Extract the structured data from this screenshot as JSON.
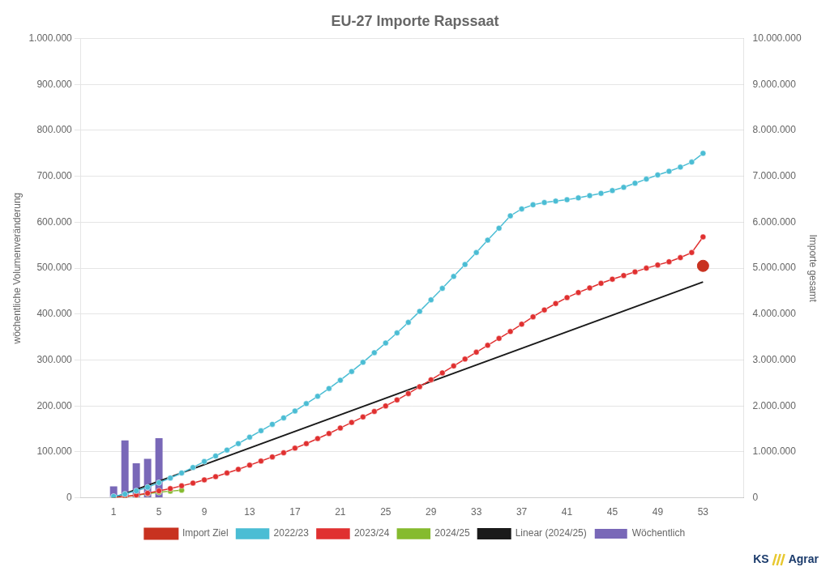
{
  "chart_data": {
    "type": "bar",
    "title": "EU-27 Importe Rapssaat",
    "ylabel": "wöchentliche Volumenveränderung",
    "y2label": "Importe gesamt",
    "xlim": [
      0.2,
      54.5
    ],
    "xticks": [
      1,
      5,
      9,
      13,
      17,
      21,
      25,
      29,
      33,
      37,
      41,
      45,
      49,
      53
    ],
    "ylim": [
      0,
      1000000
    ],
    "yticks": [
      0,
      {
        "value": 100000,
        "label": "100.000"
      },
      {
        "value": 200000,
        "label": "200.000"
      },
      {
        "value": 300000,
        "label": "300.000"
      },
      {
        "value": 400000,
        "label": "400.000"
      },
      {
        "value": 500000,
        "label": "500.000"
      },
      {
        "value": 600000,
        "label": "600.000"
      },
      {
        "value": 700000,
        "label": "700.000"
      },
      {
        "value": 800000,
        "label": "800.000"
      },
      {
        "value": 900000,
        "label": "900.000"
      },
      {
        "value": 1000000,
        "label": "1.000.000"
      }
    ],
    "y2lim": [
      0,
      10000000
    ],
    "y2ticks": [
      0,
      {
        "value": 1000000,
        "label": "1.000.000"
      },
      {
        "value": 2000000,
        "label": "2.000.000"
      },
      {
        "value": 3000000,
        "label": "3.000.000"
      },
      {
        "value": 4000000,
        "label": "4.000.000"
      },
      {
        "value": 5000000,
        "label": "5.000.000"
      },
      {
        "value": 6000000,
        "label": "6.000.000"
      },
      {
        "value": 7000000,
        "label": "7.000.000"
      },
      {
        "value": 8000000,
        "label": "8.000.000"
      },
      {
        "value": 9000000,
        "label": "9.000.000"
      },
      {
        "value": 10000000,
        "label": "10.000.000"
      }
    ],
    "grid": true,
    "legend": "bottom",
    "annotations": [
      "KS",
      "Agrar"
    ],
    "series": [
      {
        "name": "Wöchentlich",
        "type": "bar",
        "color": "#7968b8",
        "x": [
          1,
          2,
          3,
          4,
          5
        ],
        "values": [
          25000,
          125000,
          75000,
          85000,
          130000
        ]
      },
      {
        "name": "2022/23",
        "type": "line",
        "axis": "y2",
        "color": "#4bbdd4",
        "marker": "circle",
        "x": [
          1,
          2,
          3,
          4,
          5,
          6,
          7,
          8,
          9,
          10,
          11,
          12,
          13,
          14,
          15,
          16,
          17,
          18,
          19,
          20,
          21,
          22,
          23,
          24,
          25,
          26,
          27,
          28,
          29,
          30,
          31,
          32,
          33,
          34,
          35,
          36,
          37,
          38,
          39,
          40,
          41,
          42,
          43,
          44,
          45,
          46,
          47,
          48,
          49,
          50,
          51,
          52,
          53
        ],
        "values": [
          30000,
          80000,
          150000,
          230000,
          330000,
          430000,
          540000,
          660000,
          790000,
          910000,
          1040000,
          1180000,
          1320000,
          1460000,
          1600000,
          1740000,
          1890000,
          2050000,
          2210000,
          2380000,
          2560000,
          2750000,
          2950000,
          3160000,
          3370000,
          3590000,
          3820000,
          4060000,
          4310000,
          4560000,
          4820000,
          5080000,
          5340000,
          5610000,
          5870000,
          6140000,
          6290000,
          6380000,
          6430000,
          6460000,
          6490000,
          6530000,
          6580000,
          6630000,
          6690000,
          6760000,
          6850000,
          6940000,
          7030000,
          7110000,
          7200000,
          7310000,
          7500000
        ]
      },
      {
        "name": "2023/24",
        "type": "line",
        "axis": "y2",
        "color": "#e03030",
        "marker": "circle",
        "x": [
          1,
          2,
          3,
          4,
          5,
          6,
          7,
          8,
          9,
          10,
          11,
          12,
          13,
          14,
          15,
          16,
          17,
          18,
          19,
          20,
          21,
          22,
          23,
          24,
          25,
          26,
          27,
          28,
          29,
          30,
          31,
          32,
          33,
          34,
          35,
          36,
          37,
          38,
          39,
          40,
          41,
          42,
          43,
          44,
          45,
          46,
          47,
          48,
          49,
          50,
          51,
          52,
          53
        ],
        "values": [
          10000,
          30000,
          60000,
          100000,
          150000,
          200000,
          260000,
          320000,
          390000,
          460000,
          540000,
          620000,
          710000,
          800000,
          890000,
          980000,
          1080000,
          1180000,
          1290000,
          1400000,
          1520000,
          1640000,
          1760000,
          1880000,
          2000000,
          2130000,
          2270000,
          2420000,
          2570000,
          2720000,
          2870000,
          3020000,
          3170000,
          3320000,
          3470000,
          3620000,
          3780000,
          3940000,
          4090000,
          4230000,
          4360000,
          4470000,
          4570000,
          4670000,
          4760000,
          4840000,
          4920000,
          5000000,
          5070000,
          5140000,
          5230000,
          5340000,
          5680000
        ]
      },
      {
        "name": "2024/25",
        "type": "line",
        "axis": "y2",
        "color": "#85bb2f",
        "marker": "circle",
        "x": [
          1,
          2,
          3,
          4,
          5,
          6,
          7
        ],
        "values": [
          5000,
          25000,
          55000,
          90000,
          120000,
          145000,
          165000
        ]
      },
      {
        "name": "Import Ziel",
        "type": "scatter",
        "axis": "y2",
        "color": "#c83220",
        "marker": "circle",
        "x": [
          53
        ],
        "values": [
          5050000
        ]
      },
      {
        "name": "Linear (2024/25)",
        "type": "line",
        "axis": "y2",
        "color": "#1a1a1a",
        "marker": "none",
        "x": [
          1,
          53
        ],
        "values": [
          0,
          4700000
        ]
      }
    ]
  }
}
